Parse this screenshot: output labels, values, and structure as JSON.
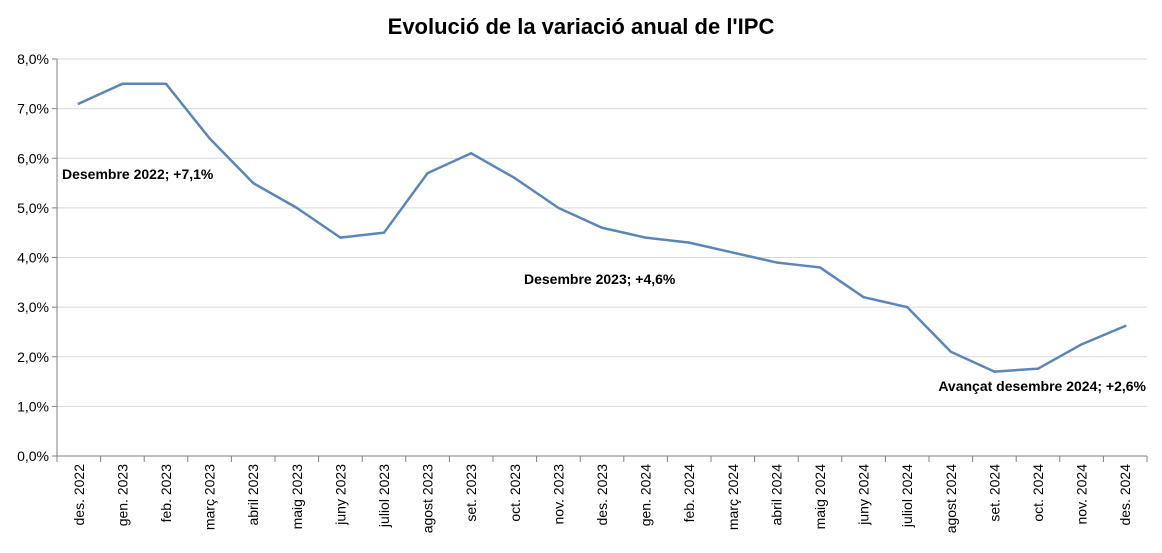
{
  "chart_data": {
    "type": "line",
    "title": "Evolució de la variació anual de l'IPC",
    "xlabel": "",
    "ylabel": "",
    "ylim": [
      0,
      8
    ],
    "yticks": [
      0,
      1,
      2,
      3,
      4,
      5,
      6,
      7,
      8
    ],
    "ytick_labels": [
      "0,0%",
      "1,0%",
      "2,0%",
      "3,0%",
      "4,0%",
      "5,0%",
      "6,0%",
      "7,0%",
      "8,0%"
    ],
    "grid": true,
    "legend": "none",
    "categories": [
      "des. 2022",
      "gen. 2023",
      "feb. 2023",
      "març 2023",
      "abril 2023",
      "maig 2023",
      "juny 2023",
      "juliol 2023",
      "agost 2023",
      "set. 2023",
      "oct. 2023",
      "nov. 2023",
      "des. 2023",
      "gen. 2024",
      "feb. 2024",
      "març 2024",
      "abril 2024",
      "maig 2024",
      "juny 2024",
      "juliol 2024",
      "agost 2024",
      "set. 2024",
      "oct. 2024",
      "nov. 2024",
      "des. 2024"
    ],
    "series": [
      {
        "color": "#5b86b9",
        "values": [
          7.1,
          7.5,
          7.5,
          6.4,
          5.5,
          5.0,
          4.4,
          4.5,
          5.7,
          6.1,
          5.6,
          5.0,
          4.6,
          4.4,
          4.3,
          4.1,
          3.9,
          3.8,
          3.2,
          3.0,
          2.1,
          1.7,
          1.76,
          2.25,
          2.62
        ]
      }
    ],
    "annotations": [
      {
        "text": "Desembre 2022; +7,1%",
        "category": "des. 2022"
      },
      {
        "text": "Desembre 2023;  +4,6%",
        "category": "des. 2023"
      },
      {
        "text": "Avançat desembre 2024; +2,6%",
        "category": "des. 2024"
      }
    ]
  }
}
